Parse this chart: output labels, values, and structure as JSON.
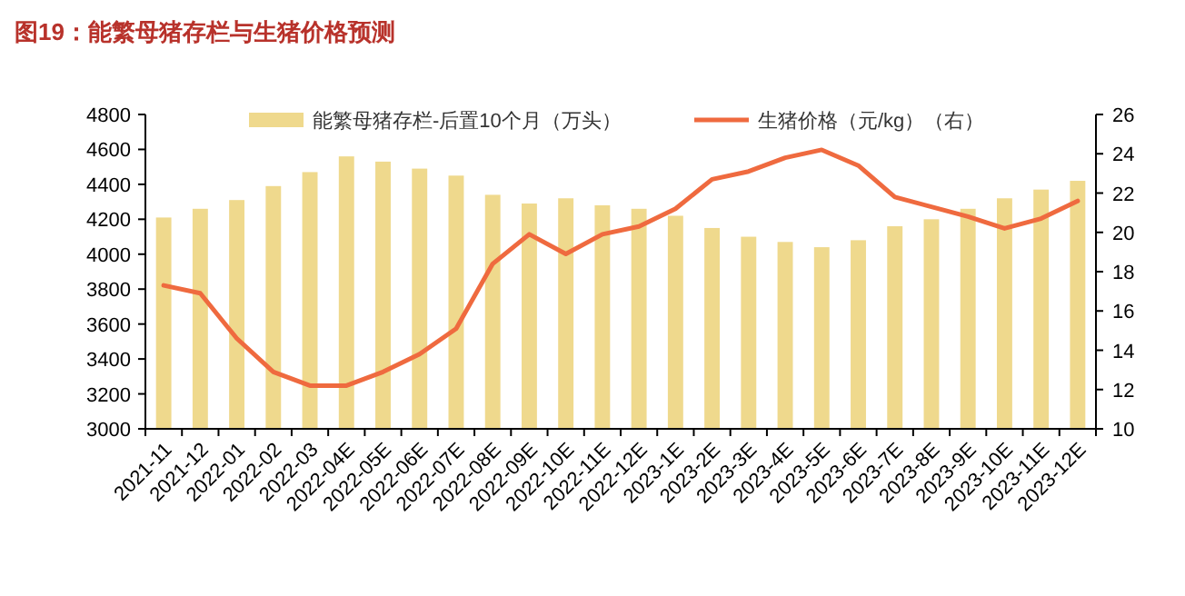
{
  "chart_data": {
    "type": "bar",
    "title": "图19：能繁母猪存栏与生猪价格预测",
    "categories": [
      "2021-11",
      "2021-12",
      "2022-01",
      "2022-02",
      "2022-03",
      "2022-04E",
      "2022-05E",
      "2022-06E",
      "2022-07E",
      "2022-08E",
      "2022-09E",
      "2022-10E",
      "2022-11E",
      "2022-12E",
      "2023-1E",
      "2023-2E",
      "2023-3E",
      "2023-4E",
      "2023-5E",
      "2023-6E",
      "2023-7E",
      "2023-8E",
      "2023-9E",
      "2023-10E",
      "2023-11E",
      "2023-12E"
    ],
    "series": [
      {
        "name": "能繁母猪存栏-后置10个月（万头）",
        "color": "#efd98d",
        "values": [
          4210,
          4260,
          4310,
          4390,
          4470,
          4560,
          4530,
          4490,
          4450,
          4340,
          4290,
          4320,
          4280,
          4260,
          4220,
          4150,
          4100,
          4070,
          4040,
          4080,
          4160,
          4200,
          4260,
          4320,
          4370,
          4420
        ]
      },
      {
        "name": "生猪价格（元/kg）（右）",
        "type": "line",
        "axis": "y2",
        "color": "#ef6a3f",
        "values": [
          17.3,
          16.9,
          14.6,
          12.9,
          12.2,
          12.2,
          12.9,
          13.8,
          15.1,
          18.4,
          19.9,
          18.9,
          19.9,
          20.3,
          21.2,
          22.7,
          23.1,
          23.8,
          24.2,
          23.4,
          21.8,
          21.3,
          20.8,
          20.2,
          20.7,
          21.6
        ]
      }
    ],
    "ylim": [
      3000,
      4800
    ],
    "yticks": [
      3000,
      3200,
      3400,
      3600,
      3800,
      4000,
      4200,
      4400,
      4600,
      4800
    ],
    "y2lim": [
      10,
      26
    ],
    "y2ticks": [
      10,
      12,
      14,
      16,
      18,
      20,
      22,
      24,
      26
    ],
    "legend": "top",
    "grid": false
  }
}
